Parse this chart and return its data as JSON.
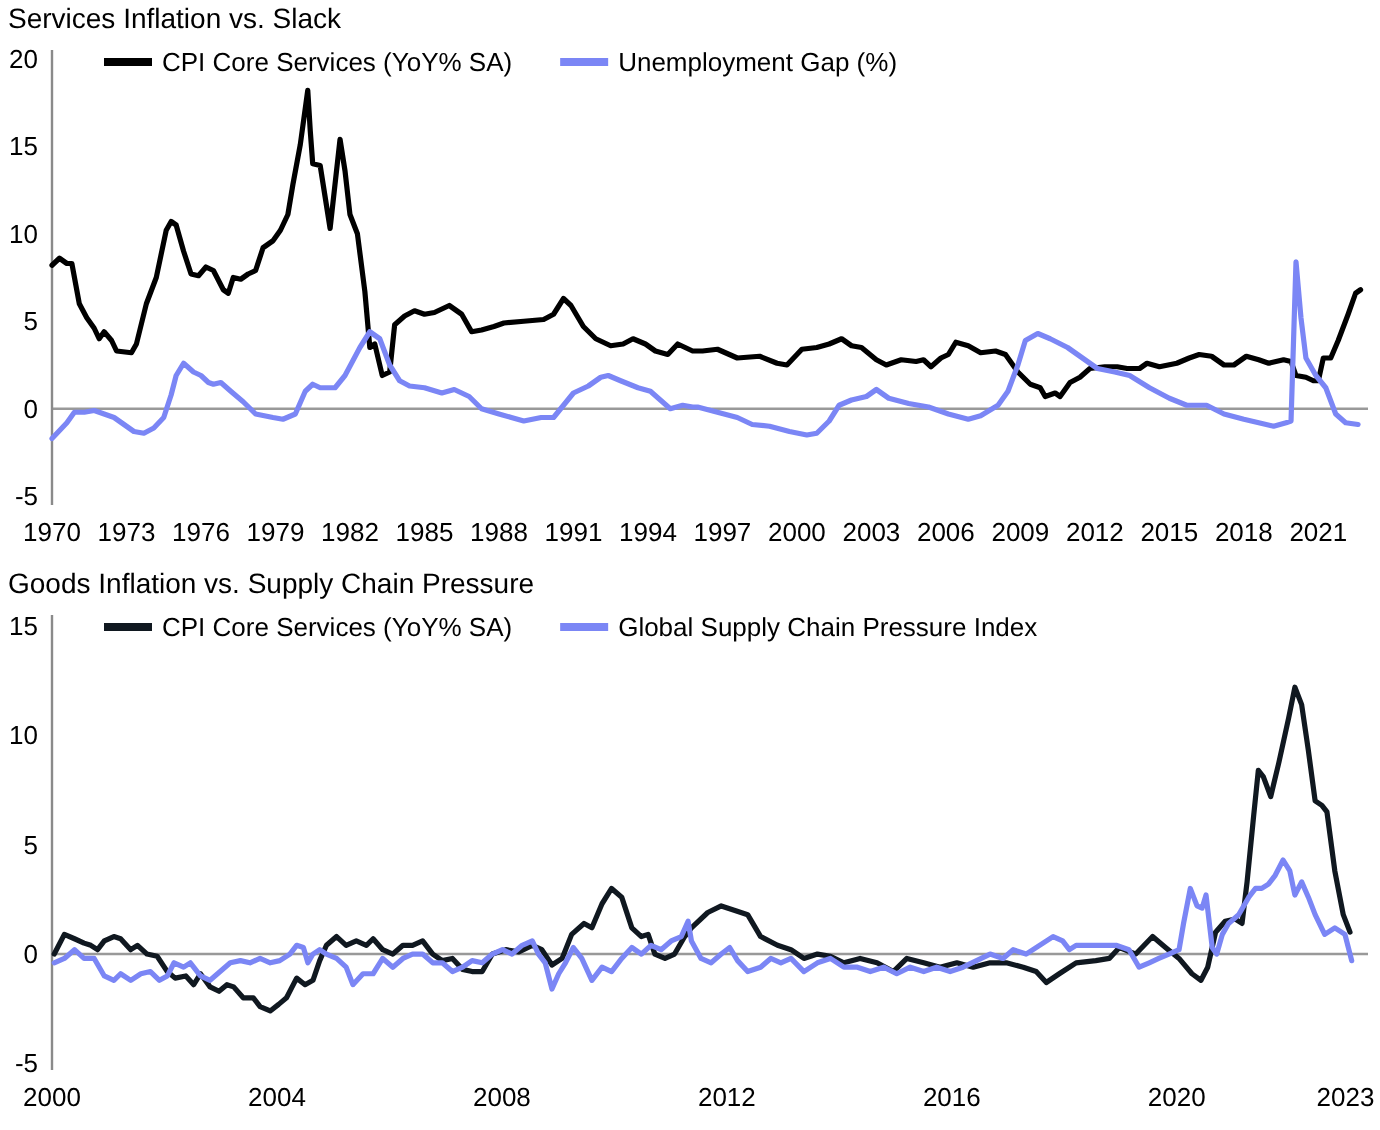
{
  "chart_data": [
    {
      "type": "line",
      "title": "Services Inflation vs. Slack",
      "legend": "top",
      "xlim": [
        1970,
        2023
      ],
      "xticks": [
        1970,
        1973,
        1976,
        1979,
        1982,
        1985,
        1988,
        1991,
        1994,
        1997,
        2000,
        2003,
        2006,
        2009,
        2012,
        2015,
        2018,
        2021
      ],
      "ylim": [
        -5.5,
        20.5
      ],
      "yticks": [
        -5,
        0,
        5,
        10,
        15,
        20
      ],
      "ref_lines": [
        {
          "axis": "y",
          "value": 0,
          "color": "#999999"
        }
      ],
      "series": [
        {
          "name": "CPI Core Services (YoY% SA)",
          "color": "#000000",
          "x": [
            1970.0,
            1970.3,
            1970.6,
            1970.8,
            1971.1,
            1971.4,
            1971.7,
            1971.9,
            1972.1,
            1972.4,
            1972.6,
            1973.2,
            1973.4,
            1973.8,
            1974.2,
            1974.6,
            1974.8,
            1975.0,
            1975.3,
            1975.6,
            1975.9,
            1976.2,
            1976.5,
            1976.9,
            1977.1,
            1977.3,
            1977.6,
            1977.9,
            1978.2,
            1978.5,
            1978.9,
            1979.2,
            1979.5,
            1979.7,
            1980.0,
            1980.3,
            1980.4,
            1980.5,
            1980.8,
            1981.0,
            1981.2,
            1981.6,
            1981.8,
            1982.0,
            1982.3,
            1982.6,
            1982.8,
            1983.0,
            1983.3,
            1983.6,
            1983.8,
            1984.2,
            1984.6,
            1985.0,
            1985.4,
            1986.0,
            1986.5,
            1986.9,
            1987.3,
            1987.8,
            1988.2,
            1989.0,
            1989.8,
            1990.2,
            1990.6,
            1990.9,
            1991.4,
            1991.9,
            1992.5,
            1993.0,
            1993.4,
            1993.9,
            1994.3,
            1994.8,
            1995.2,
            1995.8,
            1996.2,
            1996.8,
            1997.6,
            1998.5,
            1999.2,
            1999.6,
            2000.2,
            2000.8,
            2001.3,
            2001.8,
            2002.2,
            2002.6,
            2003.2,
            2003.6,
            2004.2,
            2004.8,
            2005.1,
            2005.4,
            2005.8,
            2006.1,
            2006.4,
            2006.9,
            2007.4,
            2008.0,
            2008.4,
            2008.9,
            2009.4,
            2009.8,
            2010.0,
            2010.4,
            2010.6,
            2011.0,
            2011.4,
            2011.8,
            2012.4,
            2012.9,
            2013.3,
            2013.8,
            2014.1,
            2014.6,
            2015.3,
            2015.8,
            2016.2,
            2016.7,
            2017.2,
            2017.6,
            2018.1,
            2018.6,
            2019.0,
            2019.6,
            2019.9,
            2020.1,
            2020.5,
            2020.8,
            2021.0,
            2021.2,
            2021.5,
            2021.8,
            2022.2,
            2022.5,
            2022.7
          ],
          "values": [
            8.2,
            8.6,
            8.3,
            8.3,
            6.0,
            5.2,
            4.6,
            4.0,
            4.4,
            3.9,
            3.3,
            3.2,
            3.7,
            6.0,
            7.5,
            10.2,
            10.7,
            10.5,
            9.0,
            7.7,
            7.6,
            8.1,
            7.9,
            6.8,
            6.6,
            7.5,
            7.4,
            7.7,
            7.9,
            9.2,
            9.6,
            10.2,
            11.1,
            12.8,
            15.1,
            18.2,
            15.9,
            14.0,
            13.9,
            12.1,
            10.3,
            15.4,
            13.6,
            11.1,
            10.0,
            6.7,
            3.5,
            3.7,
            1.9,
            2.1,
            4.8,
            5.3,
            5.6,
            5.4,
            5.5,
            5.9,
            5.4,
            4.4,
            4.5,
            4.7,
            4.9,
            5.0,
            5.1,
            5.4,
            6.3,
            5.9,
            4.7,
            4.0,
            3.6,
            3.7,
            4.0,
            3.7,
            3.3,
            3.1,
            3.7,
            3.3,
            3.3,
            3.4,
            2.9,
            3.0,
            2.6,
            2.5,
            3.4,
            3.5,
            3.7,
            4.0,
            3.6,
            3.5,
            2.8,
            2.5,
            2.8,
            2.7,
            2.8,
            2.4,
            2.9,
            3.1,
            3.8,
            3.6,
            3.2,
            3.3,
            3.1,
            2.1,
            1.4,
            1.2,
            0.7,
            0.9,
            0.7,
            1.5,
            1.8,
            2.3,
            2.4,
            2.4,
            2.3,
            2.3,
            2.6,
            2.4,
            2.6,
            2.9,
            3.1,
            3.0,
            2.5,
            2.5,
            3.0,
            2.8,
            2.6,
            2.8,
            2.7,
            1.9,
            1.8,
            1.6,
            1.6,
            2.9,
            2.9,
            3.9,
            5.4,
            6.6,
            6.8
          ]
        },
        {
          "name": "Unemployment Gap (%)",
          "color": "#7b86f5",
          "x": [
            1970.0,
            1970.4,
            1970.6,
            1970.9,
            1971.3,
            1971.7,
            1972.1,
            1972.5,
            1972.9,
            1973.3,
            1973.7,
            1974.1,
            1974.5,
            1974.8,
            1975.0,
            1975.3,
            1975.7,
            1976.0,
            1976.3,
            1976.5,
            1976.8,
            1977.2,
            1977.7,
            1978.2,
            1978.9,
            1979.3,
            1979.8,
            1980.2,
            1980.5,
            1980.8,
            1981.4,
            1981.8,
            1982.4,
            1982.8,
            1983.2,
            1983.6,
            1984.0,
            1984.4,
            1985.0,
            1985.7,
            1986.2,
            1986.8,
            1987.3,
            1988.0,
            1988.5,
            1989.0,
            1989.7,
            1990.2,
            1990.6,
            1991.0,
            1991.6,
            1992.1,
            1992.4,
            1992.9,
            1993.6,
            1994.1,
            1994.5,
            1994.9,
            1995.4,
            1995.8,
            1996.0,
            1996.8,
            1997.6,
            1998.2,
            1998.9,
            1999.7,
            2000.4,
            2000.8,
            2001.3,
            2001.7,
            2002.2,
            2002.8,
            2003.2,
            2003.7,
            2004.5,
            2005.3,
            2006.1,
            2006.9,
            2007.4,
            2008.1,
            2008.5,
            2008.9,
            2009.2,
            2009.7,
            2010.2,
            2010.9,
            2011.4,
            2012.1,
            2012.8,
            2013.4,
            2014.2,
            2015.0,
            2015.7,
            2016.5,
            2017.2,
            2018.0,
            2018.6,
            2019.2,
            2019.7,
            2019.9,
            2020.1,
            2020.3,
            2020.5,
            2020.9,
            2021.3,
            2021.7,
            2022.1,
            2022.6
          ],
          "values": [
            -1.7,
            -1.1,
            -0.8,
            -0.2,
            -0.2,
            -0.1,
            -0.3,
            -0.5,
            -0.9,
            -1.3,
            -1.4,
            -1.1,
            -0.5,
            0.8,
            1.9,
            2.6,
            2.1,
            1.9,
            1.5,
            1.4,
            1.5,
            1.0,
            0.4,
            -0.3,
            -0.5,
            -0.6,
            -0.3,
            1.0,
            1.4,
            1.2,
            1.2,
            1.9,
            3.5,
            4.4,
            4.0,
            2.5,
            1.6,
            1.3,
            1.2,
            0.9,
            1.1,
            0.7,
            0.0,
            -0.3,
            -0.5,
            -0.7,
            -0.5,
            -0.5,
            0.2,
            0.9,
            1.3,
            1.8,
            1.9,
            1.6,
            1.2,
            1.0,
            0.5,
            0.0,
            0.2,
            0.1,
            0.1,
            -0.2,
            -0.5,
            -0.9,
            -1.0,
            -1.3,
            -1.5,
            -1.4,
            -0.7,
            0.2,
            0.5,
            0.7,
            1.1,
            0.6,
            0.3,
            0.1,
            -0.3,
            -0.6,
            -0.4,
            0.2,
            1.0,
            2.5,
            3.9,
            4.3,
            4.0,
            3.5,
            3.0,
            2.3,
            2.1,
            1.9,
            1.2,
            0.6,
            0.2,
            0.2,
            -0.3,
            -0.6,
            -0.8,
            -1.0,
            -0.8,
            -0.7,
            8.4,
            5.2,
            2.9,
            1.9,
            1.2,
            -0.3,
            -0.8,
            -0.9
          ]
        }
      ]
    },
    {
      "type": "line",
      "title": "Goods Inflation vs. Supply Chain Pressure",
      "legend": "top",
      "xlim": [
        2000,
        2023.4
      ],
      "xticks": [
        2000,
        2004,
        2008,
        2012,
        2016,
        2020,
        2023
      ],
      "ylim": [
        -5.3,
        15.5
      ],
      "yticks": [
        -5,
        0,
        5,
        10,
        15
      ],
      "ref_lines": [
        {
          "axis": "y",
          "value": 0,
          "color": "#999999"
        }
      ],
      "series": [
        {
          "name": "CPI Core Services (YoY% SA)",
          "color": "#101820",
          "x": [
            2000.04,
            2000.22,
            2000.4,
            2000.57,
            2000.69,
            2000.81,
            2000.93,
            2001.1,
            2001.22,
            2001.4,
            2001.52,
            2001.69,
            2001.87,
            2002.05,
            2002.19,
            2002.38,
            2002.52,
            2002.64,
            2002.81,
            2002.97,
            2003.11,
            2003.23,
            2003.4,
            2003.58,
            2003.7,
            2003.88,
            2004.03,
            2004.17,
            2004.35,
            2004.5,
            2004.64,
            2004.76,
            2004.88,
            2005.06,
            2005.23,
            2005.41,
            2005.59,
            2005.71,
            2005.88,
            2006.06,
            2006.24,
            2006.41,
            2006.59,
            2006.77,
            2006.94,
            2007.12,
            2007.3,
            2007.47,
            2007.65,
            2007.83,
            2008.07,
            2008.3,
            2008.54,
            2008.71,
            2008.89,
            2009.07,
            2009.24,
            2009.46,
            2009.6,
            2009.78,
            2009.95,
            2010.13,
            2010.31,
            2010.48,
            2010.6,
            2010.72,
            2010.9,
            2011.07,
            2011.25,
            2011.37,
            2011.66,
            2011.9,
            2012.13,
            2012.37,
            2012.6,
            2012.9,
            2013.14,
            2013.37,
            2013.61,
            2013.84,
            2014.08,
            2014.37,
            2014.67,
            2014.96,
            2015.2,
            2015.5,
            2015.79,
            2016.09,
            2016.38,
            2016.68,
            2016.97,
            2017.27,
            2017.5,
            2017.68,
            2017.91,
            2018.21,
            2018.56,
            2018.8,
            2018.98,
            2019.27,
            2019.57,
            2019.8,
            2020.04,
            2020.27,
            2020.43,
            2020.55,
            2020.69,
            2020.86,
            2021.04,
            2021.16,
            2021.25,
            2021.37,
            2021.45,
            2021.54,
            2021.67,
            2021.81,
            2021.99,
            2022.1,
            2022.22,
            2022.34,
            2022.46,
            2022.58,
            2022.67,
            2022.81,
            2022.96,
            2023.08
          ],
          "values": [
            0.0,
            0.9,
            0.7,
            0.5,
            0.4,
            0.2,
            0.6,
            0.8,
            0.7,
            0.2,
            0.4,
            0.0,
            -0.1,
            -0.8,
            -1.1,
            -1.0,
            -1.4,
            -0.9,
            -1.5,
            -1.7,
            -1.4,
            -1.5,
            -2.0,
            -2.0,
            -2.4,
            -2.6,
            -2.3,
            -2.0,
            -1.1,
            -1.4,
            -1.2,
            -0.3,
            0.4,
            0.8,
            0.4,
            0.6,
            0.4,
            0.7,
            0.2,
            0.0,
            0.4,
            0.4,
            0.6,
            0.0,
            -0.3,
            -0.2,
            -0.7,
            -0.8,
            -0.8,
            0.0,
            0.2,
            0.1,
            0.4,
            0.2,
            -0.5,
            -0.2,
            0.9,
            1.4,
            1.2,
            2.3,
            3.0,
            2.6,
            1.2,
            0.8,
            0.9,
            0.0,
            -0.2,
            0.0,
            0.8,
            1.2,
            1.9,
            2.2,
            2.0,
            1.8,
            0.8,
            0.4,
            0.2,
            -0.2,
            0.0,
            -0.1,
            -0.4,
            -0.2,
            -0.4,
            -0.8,
            -0.2,
            -0.4,
            -0.6,
            -0.4,
            -0.6,
            -0.4,
            -0.4,
            -0.6,
            -0.8,
            -1.3,
            -0.9,
            -0.4,
            -0.3,
            -0.2,
            0.3,
            0.0,
            0.8,
            0.3,
            -0.2,
            -0.9,
            -1.2,
            -0.6,
            1.0,
            1.5,
            1.6,
            1.4,
            3.3,
            6.4,
            8.4,
            8.1,
            7.2,
            8.7,
            10.8,
            12.2,
            11.4,
            9.3,
            7.0,
            6.8,
            6.5,
            3.8,
            1.8,
            1.0
          ]
        },
        {
          "name": "Global Supply Chain Pressure Index",
          "color": "#7b86f5",
          "x": [
            2000.04,
            2000.22,
            2000.4,
            2000.57,
            2000.75,
            2000.93,
            2001.1,
            2001.22,
            2001.4,
            2001.58,
            2001.75,
            2001.91,
            2002.05,
            2002.17,
            2002.34,
            2002.46,
            2002.64,
            2002.81,
            2002.99,
            2003.17,
            2003.35,
            2003.52,
            2003.7,
            2003.88,
            2004.05,
            2004.23,
            2004.35,
            2004.47,
            2004.55,
            2004.64,
            2004.76,
            2004.88,
            2005.06,
            2005.23,
            2005.35,
            2005.53,
            2005.71,
            2005.88,
            2006.06,
            2006.24,
            2006.41,
            2006.59,
            2006.77,
            2006.94,
            2007.12,
            2007.3,
            2007.47,
            2007.65,
            2007.83,
            2008.01,
            2008.18,
            2008.36,
            2008.54,
            2008.65,
            2008.77,
            2008.89,
            2009.01,
            2009.13,
            2009.27,
            2009.42,
            2009.6,
            2009.78,
            2009.95,
            2010.13,
            2010.31,
            2010.48,
            2010.65,
            2010.83,
            2011.01,
            2011.19,
            2011.31,
            2011.37,
            2011.54,
            2011.72,
            2011.9,
            2012.05,
            2012.19,
            2012.37,
            2012.6,
            2012.78,
            2012.96,
            2013.14,
            2013.37,
            2013.61,
            2013.84,
            2014.08,
            2014.32,
            2014.55,
            2014.79,
            2015.02,
            2015.26,
            2015.5,
            2015.73,
            2015.97,
            2016.2,
            2016.44,
            2016.68,
            2016.91,
            2017.09,
            2017.32,
            2017.56,
            2017.8,
            2017.97,
            2018.09,
            2018.21,
            2018.45,
            2018.68,
            2018.92,
            2019.15,
            2019.33,
            2019.51,
            2019.68,
            2019.86,
            2020.04,
            2020.12,
            2020.24,
            2020.36,
            2020.45,
            2020.52,
            2020.63,
            2020.71,
            2020.81,
            2020.92,
            2021.1,
            2021.28,
            2021.4,
            2021.51,
            2021.63,
            2021.75,
            2021.89,
            2022.01,
            2022.1,
            2022.22,
            2022.34,
            2022.46,
            2022.63,
            2022.81,
            2022.99,
            2023.11
          ],
          "values": [
            -0.4,
            -0.2,
            0.2,
            -0.2,
            -0.2,
            -1.0,
            -1.2,
            -0.9,
            -1.2,
            -0.9,
            -0.8,
            -1.2,
            -1.0,
            -0.4,
            -0.6,
            -0.4,
            -1.0,
            -1.2,
            -0.8,
            -0.4,
            -0.3,
            -0.4,
            -0.2,
            -0.4,
            -0.3,
            0.0,
            0.4,
            0.3,
            -0.4,
            0.0,
            0.2,
            0.0,
            -0.2,
            -0.6,
            -1.4,
            -0.9,
            -0.9,
            -0.2,
            -0.6,
            -0.2,
            0.0,
            0.0,
            -0.4,
            -0.4,
            -0.8,
            -0.6,
            -0.3,
            -0.4,
            0.0,
            0.2,
            0.0,
            0.4,
            0.6,
            0.0,
            -0.4,
            -1.6,
            -0.9,
            -0.4,
            0.3,
            -0.2,
            -1.2,
            -0.6,
            -0.8,
            -0.2,
            0.3,
            0.0,
            0.4,
            0.2,
            0.6,
            0.8,
            1.5,
            0.6,
            -0.2,
            -0.4,
            0.0,
            0.3,
            -0.3,
            -0.8,
            -0.6,
            -0.2,
            -0.4,
            -0.2,
            -0.8,
            -0.4,
            -0.2,
            -0.6,
            -0.6,
            -0.8,
            -0.6,
            -0.9,
            -0.6,
            -0.8,
            -0.6,
            -0.8,
            -0.6,
            -0.3,
            0.0,
            -0.2,
            0.2,
            0.0,
            0.4,
            0.8,
            0.6,
            0.2,
            0.4,
            0.4,
            0.4,
            0.4,
            0.2,
            -0.6,
            -0.4,
            -0.2,
            0.0,
            0.2,
            1.4,
            3.0,
            2.2,
            2.1,
            2.7,
            0.3,
            0.0,
            0.9,
            1.4,
            1.8,
            2.6,
            3.0,
            3.0,
            3.2,
            3.6,
            4.3,
            3.8,
            2.7,
            3.3,
            2.6,
            1.8,
            0.9,
            1.2,
            0.9,
            -0.3
          ]
        }
      ]
    }
  ]
}
